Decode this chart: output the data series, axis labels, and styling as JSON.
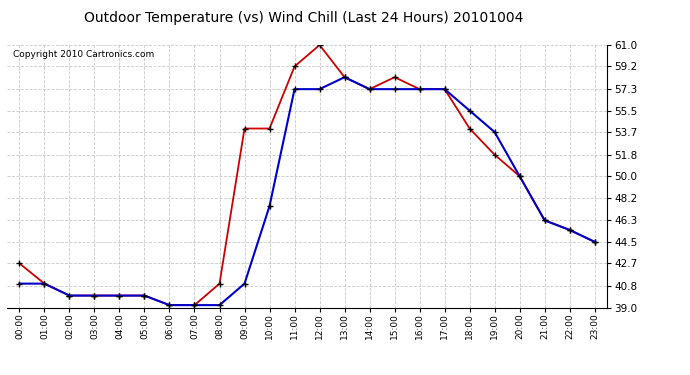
{
  "title": "Outdoor Temperature (vs) Wind Chill (Last 24 Hours) 20101004",
  "copyright": "Copyright 2010 Cartronics.com",
  "hours": [
    "00:00",
    "01:00",
    "02:00",
    "03:00",
    "04:00",
    "05:00",
    "06:00",
    "07:00",
    "08:00",
    "09:00",
    "10:00",
    "11:00",
    "12:00",
    "13:00",
    "14:00",
    "15:00",
    "16:00",
    "17:00",
    "18:00",
    "19:00",
    "20:00",
    "21:00",
    "22:00",
    "23:00"
  ],
  "outdoor_temp": [
    42.7,
    41.0,
    40.0,
    40.0,
    40.0,
    40.0,
    39.2,
    39.2,
    41.0,
    54.0,
    54.0,
    59.2,
    61.0,
    58.3,
    57.3,
    58.3,
    57.3,
    57.3,
    54.0,
    51.8,
    50.0,
    46.3,
    45.5,
    44.5
  ],
  "wind_chill": [
    41.0,
    41.0,
    40.0,
    40.0,
    40.0,
    40.0,
    39.2,
    39.2,
    39.2,
    41.0,
    47.5,
    57.3,
    57.3,
    58.3,
    57.3,
    57.3,
    57.3,
    57.3,
    55.5,
    53.7,
    50.0,
    46.3,
    45.5,
    44.5
  ],
  "ylim": [
    39.0,
    61.0
  ],
  "yticks": [
    39.0,
    40.8,
    42.7,
    44.5,
    46.3,
    48.2,
    50.0,
    51.8,
    53.7,
    55.5,
    57.3,
    59.2,
    61.0
  ],
  "temp_color": "#cc0000",
  "chill_color": "#0000cc",
  "bg_color": "#ffffff",
  "grid_color": "#bbbbbb",
  "title_fontsize": 10,
  "copyright_fontsize": 6.5,
  "ytick_fontsize": 7.5,
  "xtick_fontsize": 6.5
}
